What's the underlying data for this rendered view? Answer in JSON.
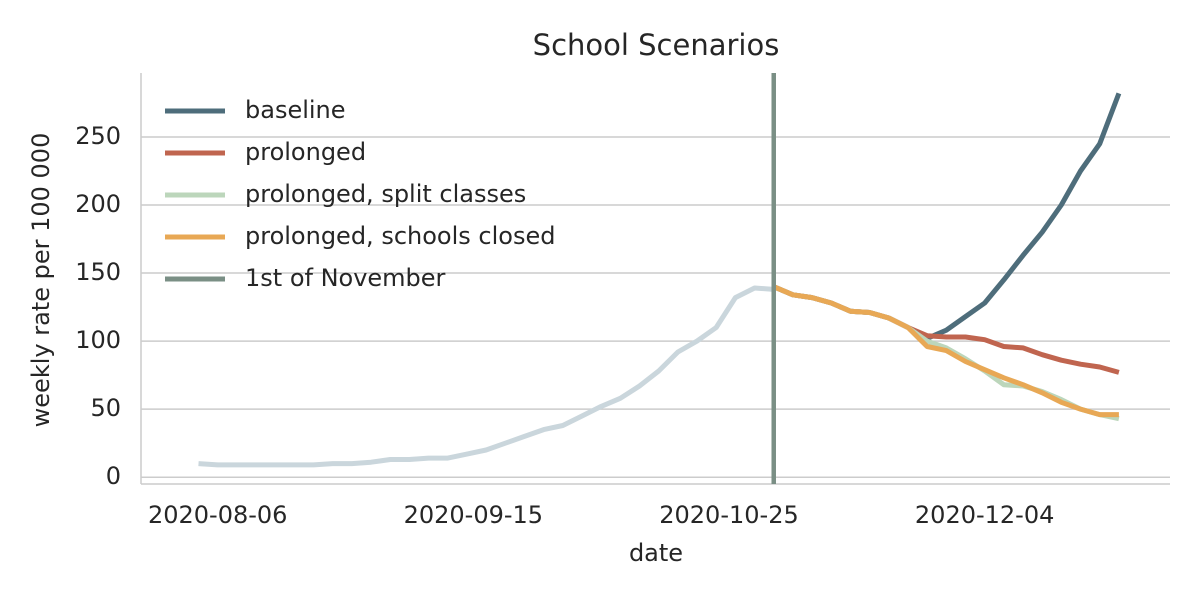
{
  "chart_data": {
    "type": "line",
    "title": "School Scenarios",
    "xlabel": "date",
    "ylabel": "weekly rate per 100 000",
    "x": [
      "2020-08-03",
      "2020-08-06",
      "2020-08-09",
      "2020-08-12",
      "2020-08-15",
      "2020-08-18",
      "2020-08-21",
      "2020-08-24",
      "2020-08-27",
      "2020-08-30",
      "2020-09-02",
      "2020-09-05",
      "2020-09-08",
      "2020-09-11",
      "2020-09-14",
      "2020-09-17",
      "2020-09-20",
      "2020-09-23",
      "2020-09-26",
      "2020-09-29",
      "2020-10-02",
      "2020-10-05",
      "2020-10-08",
      "2020-10-11",
      "2020-10-14",
      "2020-10-17",
      "2020-10-20",
      "2020-10-23",
      "2020-10-26",
      "2020-10-29",
      "2020-11-01",
      "2020-11-04",
      "2020-11-07",
      "2020-11-10",
      "2020-11-13",
      "2020-11-16",
      "2020-11-19",
      "2020-11-22",
      "2020-11-25",
      "2020-11-28",
      "2020-12-01",
      "2020-12-04",
      "2020-12-07",
      "2020-12-10",
      "2020-12-13",
      "2020-12-16",
      "2020-12-19",
      "2020-12-22",
      "2020-12-25"
    ],
    "history": {
      "color": "#cad6dc",
      "values": [
        10,
        9,
        9,
        9,
        9,
        9,
        9,
        10,
        10,
        11,
        13,
        13,
        14,
        14,
        17,
        20,
        25,
        30,
        35,
        38,
        45,
        52,
        58,
        67,
        78,
        92,
        100,
        110,
        132,
        139,
        138,
        null,
        null,
        null,
        null,
        null,
        null,
        null,
        null,
        null,
        null,
        null,
        null,
        null,
        null,
        null,
        null,
        null,
        null
      ]
    },
    "series": [
      {
        "name": "baseline",
        "color": "#4e6d7b",
        "values": [
          null,
          null,
          null,
          null,
          null,
          null,
          null,
          null,
          null,
          null,
          null,
          null,
          null,
          null,
          null,
          null,
          null,
          null,
          null,
          null,
          null,
          null,
          null,
          null,
          null,
          null,
          null,
          null,
          null,
          null,
          140,
          134,
          132,
          128,
          122,
          121,
          117,
          110,
          102,
          108,
          118,
          128,
          145,
          163,
          180,
          200,
          225,
          245,
          282
        ]
      },
      {
        "name": "prolonged",
        "color": "#c0654f",
        "values": [
          null,
          null,
          null,
          null,
          null,
          null,
          null,
          null,
          null,
          null,
          null,
          null,
          null,
          null,
          null,
          null,
          null,
          null,
          null,
          null,
          null,
          null,
          null,
          null,
          null,
          null,
          null,
          null,
          null,
          null,
          140,
          134,
          132,
          128,
          122,
          121,
          117,
          110,
          104,
          103,
          103,
          101,
          96,
          95,
          90,
          86,
          83,
          81,
          77
        ]
      },
      {
        "name": "prolonged, split classes",
        "color": "#bcd6bb",
        "values": [
          null,
          null,
          null,
          null,
          null,
          null,
          null,
          null,
          null,
          null,
          null,
          null,
          null,
          null,
          null,
          null,
          null,
          null,
          null,
          null,
          null,
          null,
          null,
          null,
          null,
          null,
          null,
          null,
          null,
          null,
          140,
          134,
          132,
          128,
          122,
          121,
          117,
          110,
          100,
          95,
          87,
          78,
          68,
          67,
          63,
          57,
          50,
          46,
          43
        ]
      },
      {
        "name": "prolonged, schools closed",
        "color": "#e8a855",
        "values": [
          null,
          null,
          null,
          null,
          null,
          null,
          null,
          null,
          null,
          null,
          null,
          null,
          null,
          null,
          null,
          null,
          null,
          null,
          null,
          null,
          null,
          null,
          null,
          null,
          null,
          null,
          null,
          null,
          null,
          null,
          140,
          134,
          132,
          128,
          122,
          121,
          117,
          110,
          96,
          93,
          85,
          79,
          73,
          68,
          62,
          55,
          50,
          46,
          46
        ]
      }
    ],
    "vline": {
      "x": "2020-11-01",
      "name": "1st of November",
      "color": "#7a8f85"
    },
    "xlim": [
      "2020-07-25",
      "2021-01-02"
    ],
    "xticks": [
      "2020-08-06",
      "2020-09-15",
      "2020-10-25",
      "2020-12-04"
    ],
    "ylim": [
      -5,
      297
    ],
    "yticks": [
      0,
      50,
      100,
      150,
      200,
      250
    ],
    "grid": true,
    "legend": "upper left"
  }
}
